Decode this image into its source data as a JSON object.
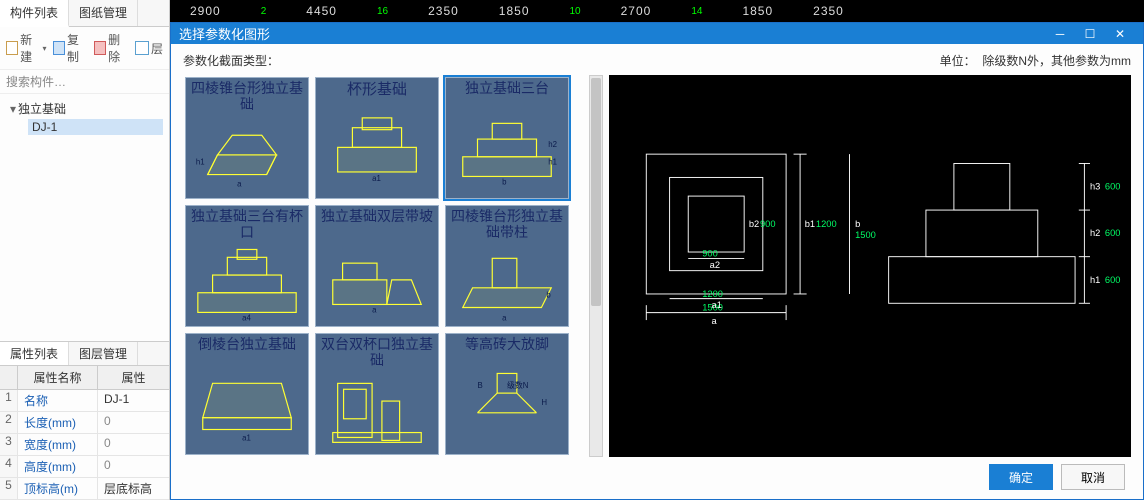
{
  "ruler": {
    "items": [
      "2900",
      "2",
      "4450",
      "16",
      "2350",
      "1850",
      "10",
      "2700",
      "14",
      "1850",
      "2350"
    ],
    "green_idx": [
      1,
      3,
      6,
      8
    ]
  },
  "left": {
    "tabs": {
      "list": "构件列表",
      "drawings": "图纸管理"
    },
    "toolbar": {
      "new": "新建",
      "copy": "复制",
      "delete": "删除",
      "layer": "层"
    },
    "search_placeholder": "搜索构件…",
    "tree": {
      "root": "独立基础",
      "child": "DJ-1"
    },
    "prop_tabs": {
      "props": "属性列表",
      "layers": "图层管理"
    },
    "prop_header": {
      "name": "属性名称",
      "value": "属性"
    },
    "props": [
      {
        "idx": "1",
        "name": "名称",
        "value": "DJ-1",
        "dark": true
      },
      {
        "idx": "2",
        "name": "长度(mm)",
        "value": "0"
      },
      {
        "idx": "3",
        "name": "宽度(mm)",
        "value": "0"
      },
      {
        "idx": "4",
        "name": "高度(mm)",
        "value": "0"
      },
      {
        "idx": "5",
        "name": "顶标高(m)",
        "value": "层底标高",
        "dark": true
      }
    ]
  },
  "dialog": {
    "title": "选择参数化图形",
    "ok": "确定",
    "cancel": "取消",
    "header_left": "参数化截面类型：",
    "header_right_a": "单位：",
    "header_right_b": "除级数N外，其他参数为mm",
    "thumbs": [
      {
        "title": "四棱锥台形独立基础"
      },
      {
        "title": "杯形基础"
      },
      {
        "title": "独立基础三台",
        "selected": true
      },
      {
        "title": "独立基础三台有杯口"
      },
      {
        "title": "独立基础双层带坡"
      },
      {
        "title": "四棱锥台形独立基础带柱"
      },
      {
        "title": "倒棱台独立基础"
      },
      {
        "title": "双台双杯口独立基础"
      },
      {
        "title": "等高砖大放脚"
      }
    ],
    "preview": {
      "plan": {
        "outer": 1500,
        "mid": 1200,
        "inner": 900,
        "a_label": "a",
        "a1_label": "a1",
        "a2_label": "a2",
        "b1_label": "b1",
        "b2_label": "b2",
        "b_label": "b",
        "b1_val": "1200",
        "b2_val": "900",
        "a_val": "1500",
        "a1_val": "1200",
        "a2_val": "900"
      },
      "elev": {
        "h1": 600,
        "h2": 600,
        "h3": 600,
        "h1_label": "h1",
        "h2_label": "h2",
        "h3_label": "h3"
      }
    }
  }
}
